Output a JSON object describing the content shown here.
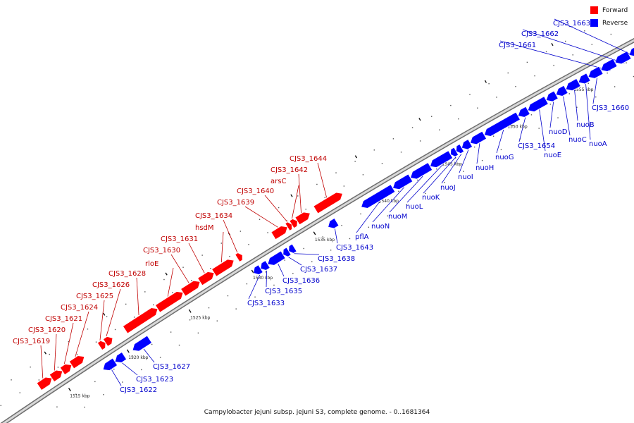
{
  "legend": {
    "items": [
      {
        "label": "Forward",
        "color": "#ff0000"
      },
      {
        "label": "Reverse",
        "color": "#0000ff"
      }
    ]
  },
  "caption": "Campylobacter jejuni subsp. jejuni S3, complete genome. - 0..1681364",
  "colors": {
    "forward": "#ff0000",
    "forward_label": "#c00000",
    "reverse": "#0000ff",
    "reverse_label": "#0000cc",
    "backbone": "#9a9a9a",
    "leader": "#666666"
  },
  "scale": {
    "unit": "kbp",
    "ticks": [
      "1515 kbp",
      "1520 kbp",
      "1525 kbp",
      "1530 kbp",
      "1535 kbp",
      "1540 kbp",
      "1545 kbp",
      "1550 kbp",
      "1555 kbp"
    ]
  },
  "genes": [
    {
      "name": "CJS3_1619",
      "strand": "forward"
    },
    {
      "name": "CJS3_1620",
      "strand": "forward"
    },
    {
      "name": "CJS3_1621",
      "strand": "forward"
    },
    {
      "name": "CJS3_1624",
      "strand": "forward"
    },
    {
      "name": "CJS3_1625",
      "strand": "forward"
    },
    {
      "name": "CJS3_1626",
      "strand": "forward"
    },
    {
      "name": "CJS3_1628",
      "strand": "forward"
    },
    {
      "name": "rloE",
      "strand": "forward"
    },
    {
      "name": "CJS3_1630",
      "strand": "forward"
    },
    {
      "name": "CJS3_1631",
      "strand": "forward"
    },
    {
      "name": "hsdM",
      "strand": "forward"
    },
    {
      "name": "CJS3_1634",
      "strand": "forward"
    },
    {
      "name": "CJS3_1639",
      "strand": "forward"
    },
    {
      "name": "CJS3_1640",
      "strand": "forward"
    },
    {
      "name": "arsC",
      "strand": "forward"
    },
    {
      "name": "CJS3_1642",
      "strand": "forward"
    },
    {
      "name": "CJS3_1644",
      "strand": "forward"
    },
    {
      "name": "CJS3_1622",
      "strand": "reverse"
    },
    {
      "name": "CJS3_1623",
      "strand": "reverse"
    },
    {
      "name": "CJS3_1627",
      "strand": "reverse"
    },
    {
      "name": "CJS3_1633",
      "strand": "reverse"
    },
    {
      "name": "CJS3_1635",
      "strand": "reverse"
    },
    {
      "name": "CJS3_1636",
      "strand": "reverse"
    },
    {
      "name": "CJS3_1637",
      "strand": "reverse"
    },
    {
      "name": "CJS3_1638",
      "strand": "reverse"
    },
    {
      "name": "CJS3_1643",
      "strand": "reverse"
    },
    {
      "name": "pflA",
      "strand": "reverse"
    },
    {
      "name": "nuoN",
      "strand": "reverse"
    },
    {
      "name": "nuoM",
      "strand": "reverse"
    },
    {
      "name": "nuoL",
      "strand": "reverse"
    },
    {
      "name": "nuoK",
      "strand": "reverse"
    },
    {
      "name": "nuoJ",
      "strand": "reverse"
    },
    {
      "name": "nuoI",
      "strand": "reverse"
    },
    {
      "name": "nuoH",
      "strand": "reverse"
    },
    {
      "name": "nuoG",
      "strand": "reverse"
    },
    {
      "name": "CJS3_1654",
      "strand": "reverse"
    },
    {
      "name": "nuoE",
      "strand": "reverse"
    },
    {
      "name": "nuoD",
      "strand": "reverse"
    },
    {
      "name": "nuoC",
      "strand": "reverse"
    },
    {
      "name": "nuoB",
      "strand": "reverse"
    },
    {
      "name": "nuoA",
      "strand": "reverse"
    },
    {
      "name": "CJS3_1660",
      "strand": "reverse"
    },
    {
      "name": "CJS3_1661",
      "strand": "reverse"
    },
    {
      "name": "CJS3_1662",
      "strand": "reverse"
    },
    {
      "name": "CJS3_1663",
      "strand": "reverse"
    }
  ]
}
